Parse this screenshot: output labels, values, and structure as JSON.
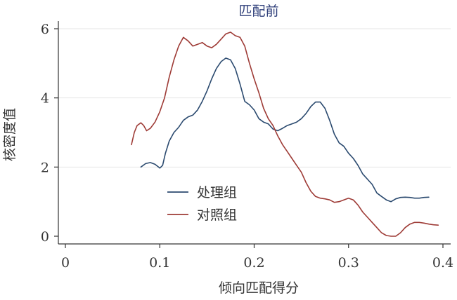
{
  "chart_data": {
    "type": "line",
    "title": "匹配前",
    "xlabel": "倾向匹配得分",
    "ylabel": "核密度值",
    "xlim": [
      0,
      0.4
    ],
    "ylim": [
      0,
      6
    ],
    "xticks": [
      0,
      0.1,
      0.2,
      0.3,
      0.4
    ],
    "xtick_labels": [
      "0",
      "0.1",
      "0.2",
      "0.3",
      "0.4"
    ],
    "yticks": [
      0,
      2,
      4,
      6
    ],
    "ytick_labels": [
      "0",
      "2",
      "4",
      "6"
    ],
    "grid": "horizontal",
    "legend_position": "center-left",
    "series": [
      {
        "name": "处理组",
        "color": "#2b4a6f",
        "x": [
          0.08,
          0.085,
          0.09,
          0.095,
          0.1,
          0.103,
          0.106,
          0.11,
          0.115,
          0.12,
          0.125,
          0.13,
          0.135,
          0.14,
          0.145,
          0.15,
          0.155,
          0.16,
          0.165,
          0.17,
          0.175,
          0.18,
          0.185,
          0.19,
          0.195,
          0.2,
          0.205,
          0.21,
          0.215,
          0.22,
          0.225,
          0.23,
          0.235,
          0.24,
          0.245,
          0.25,
          0.255,
          0.26,
          0.265,
          0.27,
          0.275,
          0.28,
          0.285,
          0.29,
          0.295,
          0.3,
          0.305,
          0.31,
          0.315,
          0.32,
          0.325,
          0.33,
          0.335,
          0.34,
          0.345,
          0.35,
          0.355,
          0.36,
          0.365,
          0.37,
          0.375,
          0.38,
          0.385
        ],
        "y": [
          2.0,
          2.1,
          2.13,
          2.08,
          1.97,
          2.05,
          2.4,
          2.75,
          3.0,
          3.15,
          3.35,
          3.45,
          3.5,
          3.65,
          3.9,
          4.2,
          4.55,
          4.85,
          5.05,
          5.15,
          5.1,
          4.85,
          4.4,
          3.9,
          3.8,
          3.65,
          3.4,
          3.3,
          3.25,
          3.1,
          3.05,
          3.12,
          3.2,
          3.25,
          3.3,
          3.4,
          3.55,
          3.75,
          3.88,
          3.88,
          3.7,
          3.35,
          2.95,
          2.7,
          2.6,
          2.4,
          2.25,
          2.05,
          1.8,
          1.65,
          1.5,
          1.25,
          1.15,
          1.05,
          1.0,
          1.08,
          1.12,
          1.13,
          1.12,
          1.1,
          1.1,
          1.12,
          1.13
        ]
      },
      {
        "name": "对照组",
        "color": "#9e3b36",
        "x": [
          0.07,
          0.073,
          0.076,
          0.08,
          0.083,
          0.086,
          0.09,
          0.095,
          0.1,
          0.105,
          0.11,
          0.115,
          0.12,
          0.125,
          0.13,
          0.135,
          0.14,
          0.145,
          0.15,
          0.155,
          0.16,
          0.165,
          0.17,
          0.175,
          0.18,
          0.185,
          0.19,
          0.195,
          0.2,
          0.205,
          0.21,
          0.215,
          0.22,
          0.225,
          0.23,
          0.235,
          0.24,
          0.245,
          0.25,
          0.255,
          0.26,
          0.265,
          0.27,
          0.275,
          0.28,
          0.285,
          0.29,
          0.295,
          0.3,
          0.305,
          0.31,
          0.315,
          0.32,
          0.325,
          0.33,
          0.335,
          0.34,
          0.345,
          0.35,
          0.355,
          0.36,
          0.365,
          0.37,
          0.375,
          0.38,
          0.385,
          0.39,
          0.395
        ],
        "y": [
          2.65,
          3.0,
          3.2,
          3.28,
          3.2,
          3.05,
          3.12,
          3.3,
          3.6,
          4.0,
          4.6,
          5.1,
          5.5,
          5.75,
          5.65,
          5.5,
          5.55,
          5.6,
          5.5,
          5.45,
          5.55,
          5.7,
          5.85,
          5.9,
          5.8,
          5.75,
          5.5,
          5.0,
          4.55,
          4.15,
          3.7,
          3.4,
          3.2,
          2.9,
          2.65,
          2.45,
          2.25,
          2.05,
          1.85,
          1.55,
          1.3,
          1.15,
          1.1,
          1.08,
          1.05,
          0.98,
          1.0,
          1.05,
          1.1,
          1.05,
          0.9,
          0.7,
          0.55,
          0.4,
          0.25,
          0.1,
          0.02,
          0.0,
          0.0,
          0.1,
          0.25,
          0.35,
          0.4,
          0.4,
          0.38,
          0.35,
          0.33,
          0.32
        ]
      }
    ]
  }
}
